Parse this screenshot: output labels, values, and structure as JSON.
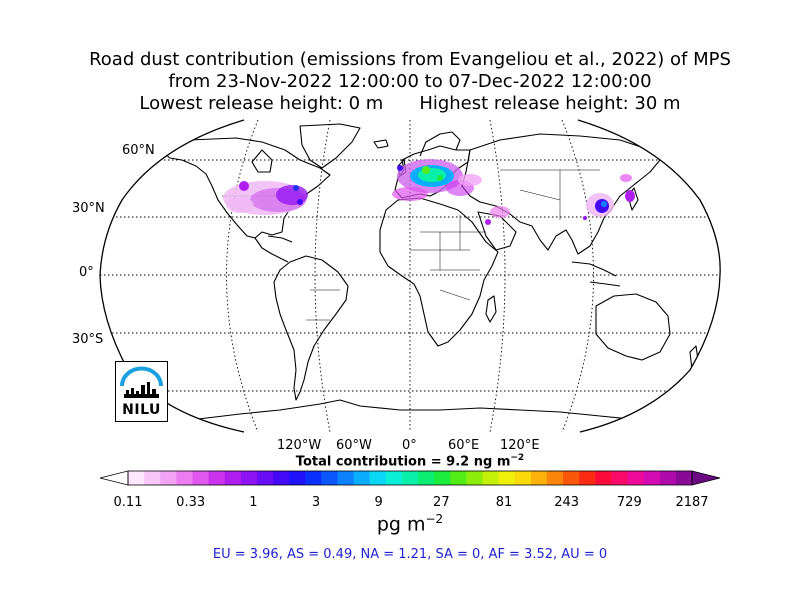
{
  "title": {
    "line1": "Road dust contribution (emissions from Evangeliou et al., 2022) of MPS",
    "line2": "from 23-Nov-2022 12:00:00 to 07-Dec-2022 12:00:00",
    "line3_left": "Lowest release height: 0 m",
    "line3_right": "Highest release height: 30 m"
  },
  "map": {
    "projection": "robinson",
    "lat_labels": [
      "60°N",
      "30°N",
      "0°",
      "30°S"
    ],
    "lon_labels": [
      "120°W",
      "60°W",
      "0°",
      "60°E",
      "120°E"
    ],
    "gridlines": "dotted",
    "logo_text": "NILU"
  },
  "total_contribution": "Total contribution = 9.2 ng m",
  "total_contribution_exp": "−2",
  "colorbar": {
    "ticks": [
      "0.11",
      "0.33",
      "1",
      "3",
      "9",
      "27",
      "81",
      "243",
      "729",
      "2187"
    ],
    "unit": "pg m",
    "unit_exp": "−2",
    "colors": [
      "#ffffff",
      "#fde6fd",
      "#f9c6f9",
      "#f3a3f5",
      "#ec7df1",
      "#e056ee",
      "#cc33ee",
      "#b01df0",
      "#8f12f2",
      "#6a0cf5",
      "#440af8",
      "#1f12fa",
      "#0a30fb",
      "#0a58fc",
      "#0a82fc",
      "#0aaefc",
      "#0ad6f5",
      "#0af0d8",
      "#0af0a8",
      "#0aee72",
      "#1cec3c",
      "#52ec16",
      "#8cee0a",
      "#c4f00a",
      "#eef00a",
      "#fada0a",
      "#fbb00a",
      "#fb840a",
      "#fb560a",
      "#fb2a12",
      "#fb0a3a",
      "#fb0a6a",
      "#f00a9a",
      "#d40ab4",
      "#b00aac",
      "#8a0a98",
      "#6a0a82"
    ]
  },
  "stats": "EU = 3.96,  AS = 0.49,  NA = 1.21,  SA = 0,  AF = 3.52,  AU = 0"
}
